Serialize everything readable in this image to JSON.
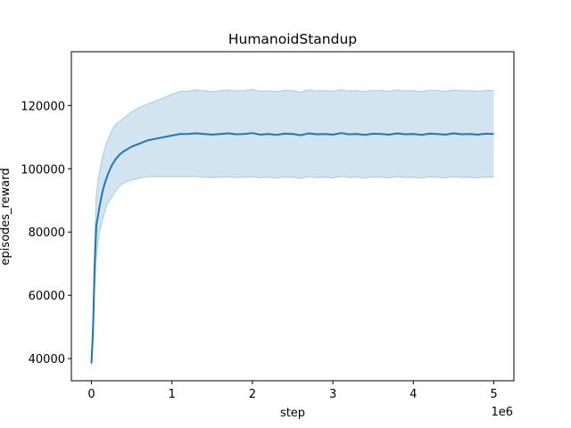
{
  "chart_data": {
    "type": "line",
    "title": "HumanoidStandup",
    "xlabel": "step",
    "ylabel": "episodes_reward",
    "x_offset_label": "1e6",
    "xlim": [
      -0.25,
      5.25
    ],
    "ylim": [
      33000,
      137000
    ],
    "xticks": [
      0,
      1,
      2,
      3,
      4,
      5
    ],
    "xtick_labels": [
      "0",
      "1",
      "2",
      "3",
      "4",
      "5"
    ],
    "yticks": [
      40000,
      60000,
      80000,
      100000,
      120000
    ],
    "ytick_labels": [
      "40000",
      "60000",
      "80000",
      "100000",
      "120000"
    ],
    "grid": false,
    "colors": {
      "line": "#1f77b4",
      "band_fill": "#1f77b4",
      "band_edge": "#1f77b4"
    },
    "series": [
      {
        "x": [
          0.0,
          0.02,
          0.04,
          0.06,
          0.08,
          0.1,
          0.13,
          0.16,
          0.2,
          0.25,
          0.3,
          0.35,
          0.4,
          0.5,
          0.6,
          0.7,
          0.8,
          0.9,
          1.0,
          1.1,
          1.2,
          1.3,
          1.4,
          1.5,
          1.6,
          1.7,
          1.8,
          1.9,
          2.0,
          2.1,
          2.2,
          2.3,
          2.4,
          2.5,
          2.6,
          2.7,
          2.8,
          2.9,
          3.0,
          3.1,
          3.2,
          3.3,
          3.4,
          3.5,
          3.6,
          3.7,
          3.8,
          3.9,
          4.0,
          4.1,
          4.2,
          4.3,
          4.4,
          4.5,
          4.6,
          4.7,
          4.8,
          4.9,
          5.0
        ],
        "mean": [
          38500,
          50000,
          70000,
          82000,
          85000,
          88000,
          92000,
          95000,
          98000,
          101000,
          103000,
          104500,
          105500,
          107000,
          108000,
          109000,
          109500,
          110000,
          110500,
          111000,
          111000,
          111200,
          111000,
          110800,
          111000,
          111200,
          110900,
          111000,
          111300,
          110800,
          111000,
          110700,
          111100,
          111000,
          110600,
          111200,
          110900,
          111000,
          110800,
          111300,
          110900,
          111000,
          110700,
          111100,
          111000,
          110800,
          111200,
          110900,
          111000,
          110700,
          111100,
          111000,
          110800,
          111200,
          110900,
          111000,
          110800,
          111100,
          111000
        ],
        "lower": [
          38000,
          45000,
          62000,
          72000,
          76000,
          80000,
          83000,
          86000,
          89000,
          91000,
          93000,
          94500,
          95500,
          96500,
          97000,
          97500,
          97500,
          97500,
          97500,
          97500,
          97500,
          97500,
          97300,
          97200,
          97300,
          97500,
          97200,
          97300,
          97500,
          97100,
          97300,
          97000,
          97400,
          97300,
          96900,
          97500,
          97200,
          97300,
          97100,
          97600,
          97200,
          97300,
          97000,
          97400,
          97300,
          97100,
          97500,
          97200,
          97300,
          97000,
          97400,
          97300,
          97100,
          97500,
          97200,
          97300,
          97100,
          97400,
          97300
        ],
        "upper": [
          39000,
          55000,
          78000,
          92000,
          96000,
          99000,
          103000,
          106000,
          109000,
          112000,
          114000,
          115000,
          116000,
          118000,
          119500,
          120500,
          121500,
          122500,
          123500,
          124500,
          124500,
          125000,
          124700,
          124400,
          124700,
          124900,
          124600,
          124700,
          125100,
          124500,
          124700,
          124400,
          124800,
          124700,
          124300,
          124900,
          124600,
          124700,
          124500,
          125000,
          124600,
          124700,
          124400,
          124800,
          124700,
          124500,
          124900,
          124600,
          124700,
          124400,
          124800,
          124700,
          124500,
          124900,
          124600,
          124700,
          124500,
          124800,
          124700
        ]
      }
    ]
  }
}
